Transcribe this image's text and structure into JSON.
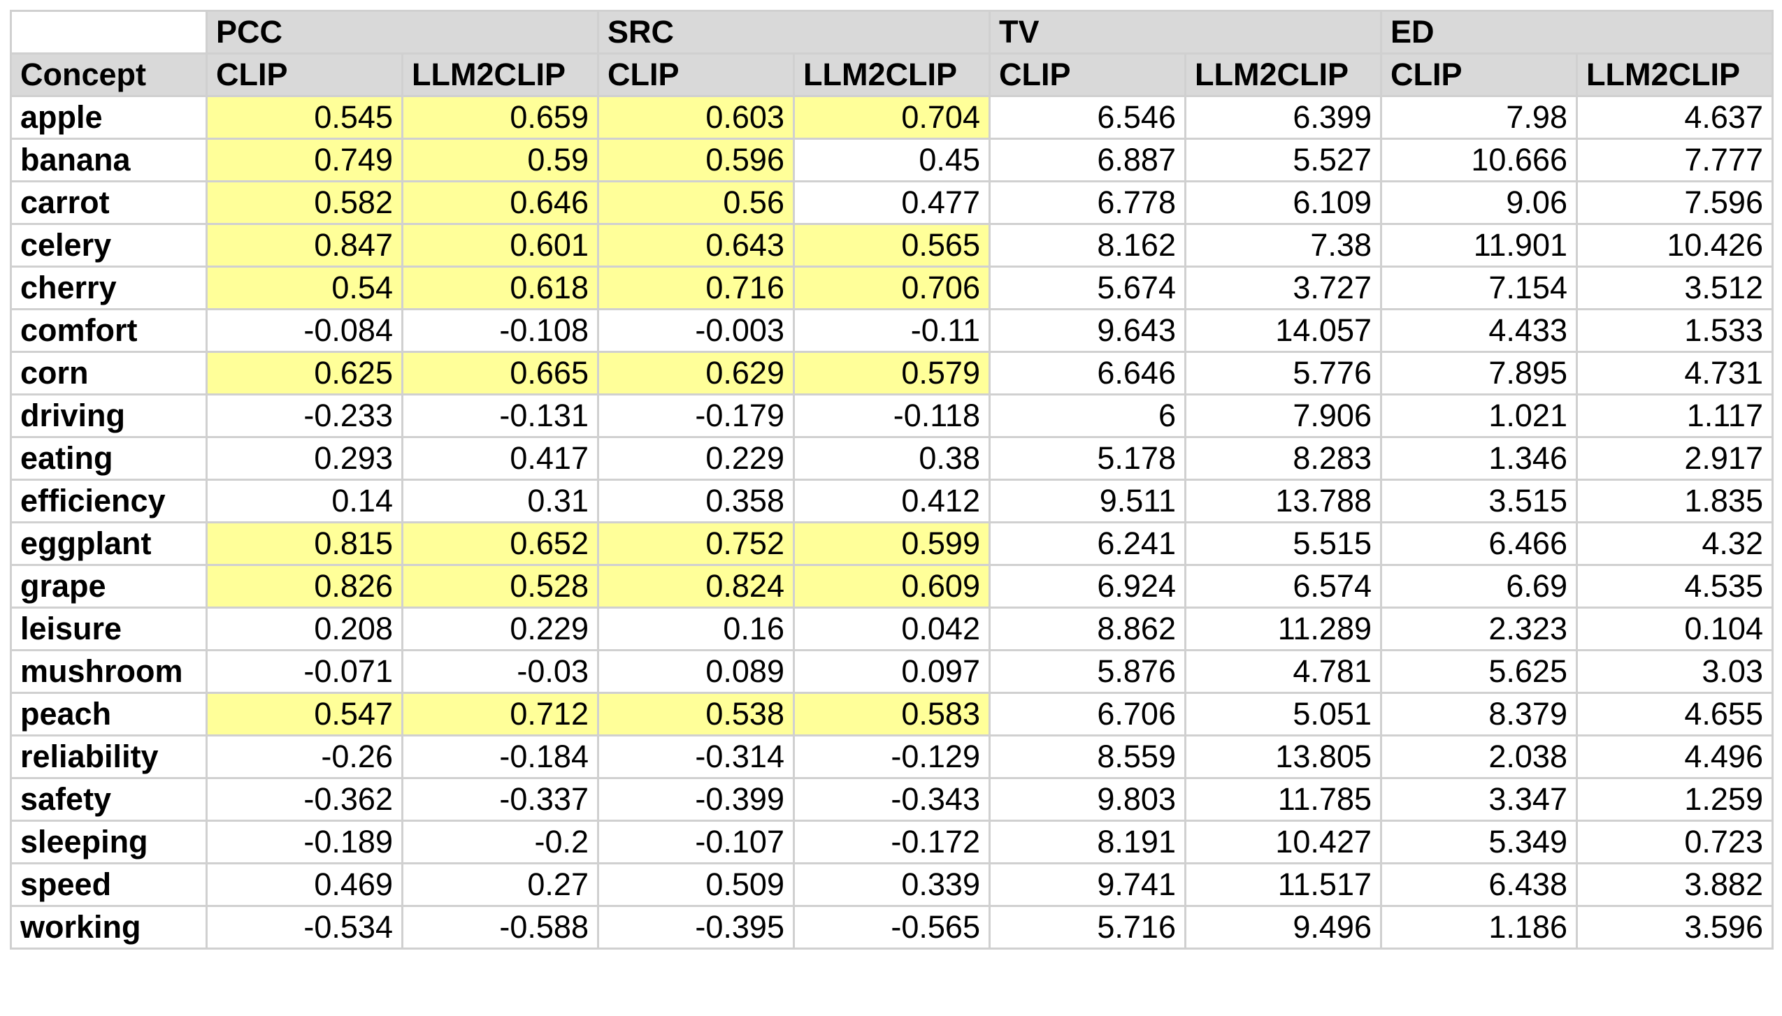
{
  "colors": {
    "header_bg": "#d9d9d9",
    "highlight": "#ffff99",
    "grid": "#d0d0d0"
  },
  "groups": [
    "PCC",
    "SRC",
    "TV",
    "ED"
  ],
  "subheaders": [
    "Concept",
    "CLIP",
    "LLM2CLIP",
    "CLIP",
    "LLM2CLIP",
    "CLIP",
    "LLM2CLIP",
    "CLIP",
    "LLM2CLIP"
  ],
  "rows": [
    {
      "concept": "apple",
      "values": [
        "0.545",
        "0.659",
        "0.603",
        "0.704",
        "6.546",
        "6.399",
        "7.98",
        "4.637"
      ],
      "highlight": [
        true,
        true,
        true,
        true
      ]
    },
    {
      "concept": "banana",
      "values": [
        "0.749",
        "0.59",
        "0.596",
        "0.45",
        "6.887",
        "5.527",
        "10.666",
        "7.777"
      ],
      "highlight": [
        true,
        true,
        true,
        false
      ]
    },
    {
      "concept": "carrot",
      "values": [
        "0.582",
        "0.646",
        "0.56",
        "0.477",
        "6.778",
        "6.109",
        "9.06",
        "7.596"
      ],
      "highlight": [
        true,
        true,
        true,
        false
      ]
    },
    {
      "concept": "celery",
      "values": [
        "0.847",
        "0.601",
        "0.643",
        "0.565",
        "8.162",
        "7.38",
        "11.901",
        "10.426"
      ],
      "highlight": [
        true,
        true,
        true,
        true
      ]
    },
    {
      "concept": "cherry",
      "values": [
        "0.54",
        "0.618",
        "0.716",
        "0.706",
        "5.674",
        "3.727",
        "7.154",
        "3.512"
      ],
      "highlight": [
        true,
        true,
        true,
        true
      ]
    },
    {
      "concept": "comfort",
      "values": [
        "-0.084",
        "-0.108",
        "-0.003",
        "-0.11",
        "9.643",
        "14.057",
        "4.433",
        "1.533"
      ],
      "highlight": [
        false,
        false,
        false,
        false
      ]
    },
    {
      "concept": "corn",
      "values": [
        "0.625",
        "0.665",
        "0.629",
        "0.579",
        "6.646",
        "5.776",
        "7.895",
        "4.731"
      ],
      "highlight": [
        true,
        true,
        true,
        true
      ]
    },
    {
      "concept": "driving",
      "values": [
        "-0.233",
        "-0.131",
        "-0.179",
        "-0.118",
        "6",
        "7.906",
        "1.021",
        "1.117"
      ],
      "highlight": [
        false,
        false,
        false,
        false
      ]
    },
    {
      "concept": "eating",
      "values": [
        "0.293",
        "0.417",
        "0.229",
        "0.38",
        "5.178",
        "8.283",
        "1.346",
        "2.917"
      ],
      "highlight": [
        false,
        false,
        false,
        false
      ]
    },
    {
      "concept": "efficiency",
      "values": [
        "0.14",
        "0.31",
        "0.358",
        "0.412",
        "9.511",
        "13.788",
        "3.515",
        "1.835"
      ],
      "highlight": [
        false,
        false,
        false,
        false
      ]
    },
    {
      "concept": "eggplant",
      "values": [
        "0.815",
        "0.652",
        "0.752",
        "0.599",
        "6.241",
        "5.515",
        "6.466",
        "4.32"
      ],
      "highlight": [
        true,
        true,
        true,
        true
      ]
    },
    {
      "concept": "grape",
      "values": [
        "0.826",
        "0.528",
        "0.824",
        "0.609",
        "6.924",
        "6.574",
        "6.69",
        "4.535"
      ],
      "highlight": [
        true,
        true,
        true,
        true
      ]
    },
    {
      "concept": "leisure",
      "values": [
        "0.208",
        "0.229",
        "0.16",
        "0.042",
        "8.862",
        "11.289",
        "2.323",
        "0.104"
      ],
      "highlight": [
        false,
        false,
        false,
        false
      ]
    },
    {
      "concept": "mushroom",
      "values": [
        "-0.071",
        "-0.03",
        "0.089",
        "0.097",
        "5.876",
        "4.781",
        "5.625",
        "3.03"
      ],
      "highlight": [
        false,
        false,
        false,
        false
      ]
    },
    {
      "concept": "peach",
      "values": [
        "0.547",
        "0.712",
        "0.538",
        "0.583",
        "6.706",
        "5.051",
        "8.379",
        "4.655"
      ],
      "highlight": [
        true,
        true,
        true,
        true
      ]
    },
    {
      "concept": "reliability",
      "values": [
        "-0.26",
        "-0.184",
        "-0.314",
        "-0.129",
        "8.559",
        "13.805",
        "2.038",
        "4.496"
      ],
      "highlight": [
        false,
        false,
        false,
        false
      ]
    },
    {
      "concept": "safety",
      "values": [
        "-0.362",
        "-0.337",
        "-0.399",
        "-0.343",
        "9.803",
        "11.785",
        "3.347",
        "1.259"
      ],
      "highlight": [
        false,
        false,
        false,
        false
      ]
    },
    {
      "concept": "sleeping",
      "values": [
        "-0.189",
        "-0.2",
        "-0.107",
        "-0.172",
        "8.191",
        "10.427",
        "5.349",
        "0.723"
      ],
      "highlight": [
        false,
        false,
        false,
        false
      ]
    },
    {
      "concept": "speed",
      "values": [
        "0.469",
        "0.27",
        "0.509",
        "0.339",
        "9.741",
        "11.517",
        "6.438",
        "3.882"
      ],
      "highlight": [
        false,
        false,
        false,
        false
      ]
    },
    {
      "concept": "working",
      "values": [
        "-0.534",
        "-0.588",
        "-0.395",
        "-0.565",
        "5.716",
        "9.496",
        "1.186",
        "3.596"
      ],
      "highlight": [
        false,
        false,
        false,
        false
      ]
    }
  ]
}
